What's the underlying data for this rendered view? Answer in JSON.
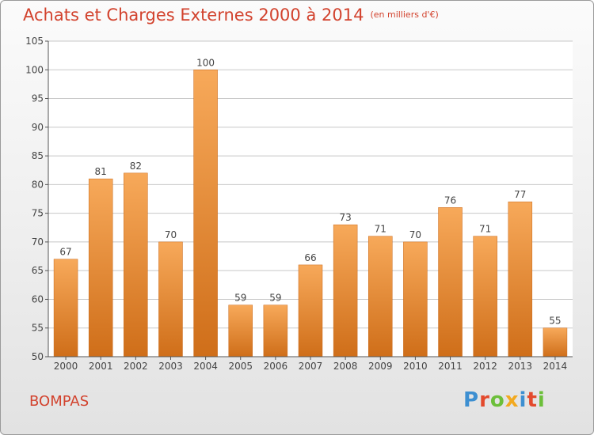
{
  "header": {
    "title": "Achats et Charges Externes 2000 à 2014",
    "unit": "(en milliers d'€)"
  },
  "footer": {
    "city": "BOMPAS",
    "logo_letters": [
      "P",
      "r",
      "o",
      "x",
      "i",
      "t",
      "i"
    ],
    "logo_colors": [
      "#3d8fd1",
      "#e34a2d",
      "#6cbf3a",
      "#f2a91f",
      "#3d8fd1",
      "#e34a2d",
      "#6cbf3a"
    ]
  },
  "colors": {
    "title": "#d2422d",
    "bar_top": "#f7a95a",
    "bar_bottom": "#cf6e19",
    "grid": "#c8c8c8"
  },
  "chart_data": {
    "type": "bar",
    "title": "Achats et Charges Externes 2000 à 2014",
    "subtitle": "(en milliers d'€)",
    "xlabel": "",
    "ylabel": "",
    "categories": [
      "2000",
      "2001",
      "2002",
      "2003",
      "2004",
      "2005",
      "2006",
      "2007",
      "2008",
      "2009",
      "2010",
      "2011",
      "2012",
      "2013",
      "2014"
    ],
    "values": [
      67,
      81,
      82,
      70,
      100,
      59,
      59,
      66,
      73,
      71,
      70,
      76,
      71,
      77,
      55
    ],
    "ylim": [
      50,
      105
    ],
    "yticks": [
      50,
      55,
      60,
      65,
      70,
      75,
      80,
      85,
      90,
      95,
      100,
      105
    ],
    "grid": true,
    "legend": "none"
  }
}
